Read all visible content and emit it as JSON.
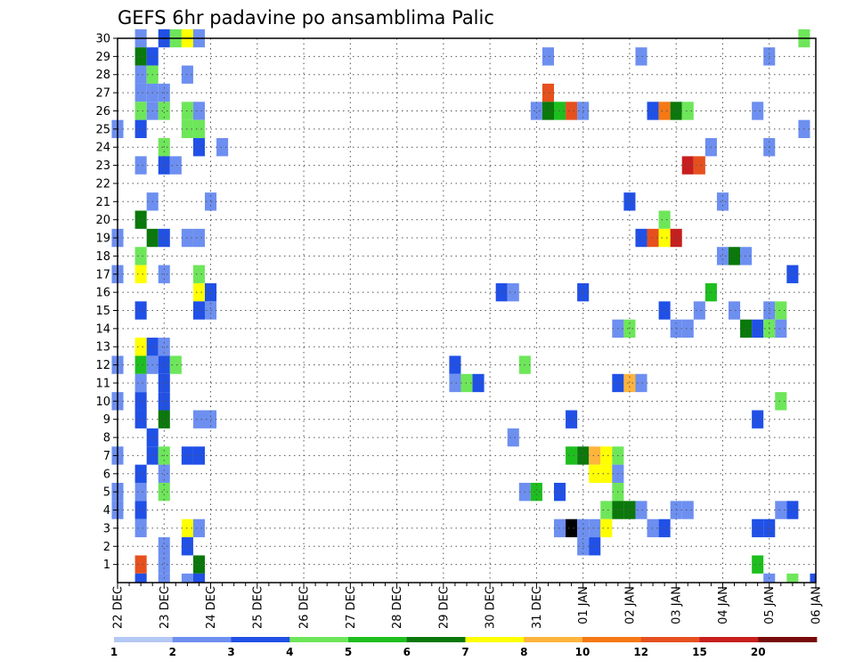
{
  "chart_data": {
    "type": "heatmap",
    "title": "GEFS 6hr padavine po ansamblima Palic",
    "xlabel": "",
    "ylabel": "",
    "x_tick_labels": [
      "22 DEC",
      "23 DEC",
      "24 DEC",
      "25 DEC",
      "26 DEC",
      "27 DEC",
      "28 DEC",
      "29 DEC",
      "30 DEC",
      "31 DEC",
      "01 JAN",
      "02 JAN",
      "03 JAN",
      "04 JAN",
      "05 JAN",
      "06 JAN"
    ],
    "y_tick_labels": [
      "1",
      "2",
      "3",
      "4",
      "5",
      "6",
      "7",
      "8",
      "9",
      "10",
      "11",
      "12",
      "13",
      "14",
      "15",
      "16",
      "17",
      "18",
      "19",
      "20",
      "21",
      "22",
      "23",
      "24",
      "25",
      "26",
      "27",
      "28",
      "29",
      "30"
    ],
    "x_unit": "6-hour step (0 = 22 DEC 00z, 4 steps per day)",
    "x_range": [
      0,
      60
    ],
    "y_range": [
      0,
      30
    ],
    "grid": true,
    "colorbar": {
      "levels": [
        "1",
        "2",
        "3",
        "4",
        "5",
        "6",
        "7",
        "8",
        "10",
        "12",
        "15",
        "20"
      ],
      "colors": [
        "#b4c8f5",
        "#6d8ff0",
        "#2050e6",
        "#6ee65a",
        "#1ebe1e",
        "#0a780a",
        "#ffff00",
        "#ffb43c",
        "#f57814",
        "#e6501e",
        "#c81e1e",
        "#780a0a"
      ]
    },
    "cells": [
      [
        2,
        30,
        1
      ],
      [
        4,
        30,
        2
      ],
      [
        5,
        30,
        3
      ],
      [
        6,
        30,
        6
      ],
      [
        7,
        30,
        1
      ],
      [
        59,
        30,
        3
      ],
      [
        2,
        29,
        5
      ],
      [
        3,
        29,
        2
      ],
      [
        37,
        29,
        1
      ],
      [
        45,
        29,
        1
      ],
      [
        56,
        29,
        1
      ],
      [
        2,
        28,
        1
      ],
      [
        3,
        28,
        3
      ],
      [
        6,
        28,
        1
      ],
      [
        2,
        27,
        1
      ],
      [
        3,
        27,
        1
      ],
      [
        4,
        27,
        1
      ],
      [
        37,
        27,
        9
      ],
      [
        2,
        26,
        3
      ],
      [
        3,
        26,
        1
      ],
      [
        4,
        26,
        3
      ],
      [
        6,
        26,
        3
      ],
      [
        7,
        26,
        1
      ],
      [
        36,
        26,
        1
      ],
      [
        37,
        26,
        5
      ],
      [
        38,
        26,
        4
      ],
      [
        39,
        26,
        9
      ],
      [
        40,
        26,
        1
      ],
      [
        46,
        26,
        2
      ],
      [
        47,
        26,
        8
      ],
      [
        48,
        26,
        5
      ],
      [
        49,
        26,
        3
      ],
      [
        55,
        26,
        1
      ],
      [
        0,
        25,
        1
      ],
      [
        2,
        25,
        2
      ],
      [
        6,
        25,
        3
      ],
      [
        7,
        25,
        3
      ],
      [
        59,
        25,
        1
      ],
      [
        4,
        24,
        3
      ],
      [
        7,
        24,
        2
      ],
      [
        9,
        24,
        1
      ],
      [
        51,
        24,
        1
      ],
      [
        56,
        24,
        1
      ],
      [
        2,
        23,
        1
      ],
      [
        4,
        23,
        2
      ],
      [
        5,
        23,
        1
      ],
      [
        49,
        23,
        10
      ],
      [
        50,
        23,
        9
      ],
      [
        3,
        21,
        1
      ],
      [
        8,
        21,
        1
      ],
      [
        44,
        21,
        2
      ],
      [
        52,
        21,
        1
      ],
      [
        2,
        20,
        5
      ],
      [
        47,
        20,
        3
      ],
      [
        0,
        19,
        1
      ],
      [
        3,
        19,
        5
      ],
      [
        4,
        19,
        2
      ],
      [
        6,
        19,
        1
      ],
      [
        7,
        19,
        1
      ],
      [
        45,
        19,
        2
      ],
      [
        46,
        19,
        9
      ],
      [
        47,
        19,
        6
      ],
      [
        48,
        19,
        10
      ],
      [
        2,
        18,
        3
      ],
      [
        52,
        18,
        1
      ],
      [
        53,
        18,
        5
      ],
      [
        54,
        18,
        1
      ],
      [
        0,
        17,
        1
      ],
      [
        2,
        17,
        6
      ],
      [
        4,
        17,
        1
      ],
      [
        7,
        17,
        3
      ],
      [
        58,
        17,
        2
      ],
      [
        7,
        16,
        6
      ],
      [
        8,
        16,
        2
      ],
      [
        33,
        16,
        2
      ],
      [
        34,
        16,
        1
      ],
      [
        40,
        16,
        2
      ],
      [
        51,
        16,
        4
      ],
      [
        2,
        15,
        2
      ],
      [
        7,
        15,
        2
      ],
      [
        8,
        15,
        1
      ],
      [
        47,
        15,
        2
      ],
      [
        50,
        15,
        1
      ],
      [
        53,
        15,
        1
      ],
      [
        56,
        15,
        1
      ],
      [
        57,
        15,
        3
      ],
      [
        43,
        14,
        1
      ],
      [
        44,
        14,
        3
      ],
      [
        48,
        14,
        1
      ],
      [
        49,
        14,
        1
      ],
      [
        54,
        14,
        5
      ],
      [
        55,
        14,
        2
      ],
      [
        56,
        14,
        3
      ],
      [
        57,
        14,
        1
      ],
      [
        2,
        13,
        6
      ],
      [
        3,
        13,
        2
      ],
      [
        4,
        13,
        1
      ],
      [
        0,
        12,
        1
      ],
      [
        2,
        12,
        4
      ],
      [
        3,
        12,
        1
      ],
      [
        4,
        12,
        2
      ],
      [
        5,
        12,
        3
      ],
      [
        29,
        12,
        2
      ],
      [
        35,
        12,
        3
      ],
      [
        2,
        11,
        1
      ],
      [
        4,
        11,
        2
      ],
      [
        29,
        11,
        1
      ],
      [
        30,
        11,
        3
      ],
      [
        31,
        11,
        2
      ],
      [
        43,
        11,
        2
      ],
      [
        44,
        11,
        7
      ],
      [
        45,
        11,
        1
      ],
      [
        0,
        10,
        1
      ],
      [
        2,
        10,
        2
      ],
      [
        4,
        10,
        2
      ],
      [
        57,
        10,
        3
      ],
      [
        2,
        9,
        2
      ],
      [
        4,
        9,
        5
      ],
      [
        7,
        9,
        1
      ],
      [
        8,
        9,
        1
      ],
      [
        39,
        9,
        2
      ],
      [
        55,
        9,
        2
      ],
      [
        3,
        8,
        2
      ],
      [
        34,
        8,
        1
      ],
      [
        0,
        7,
        1
      ],
      [
        3,
        7,
        2
      ],
      [
        4,
        7,
        3
      ],
      [
        6,
        7,
        2
      ],
      [
        7,
        7,
        2
      ],
      [
        39,
        7,
        4
      ],
      [
        40,
        7,
        5
      ],
      [
        41,
        7,
        7
      ],
      [
        42,
        7,
        6
      ],
      [
        43,
        7,
        3
      ],
      [
        2,
        6,
        2
      ],
      [
        4,
        6,
        1
      ],
      [
        41,
        6,
        6
      ],
      [
        42,
        6,
        6
      ],
      [
        43,
        6,
        1
      ],
      [
        0,
        5,
        1
      ],
      [
        2,
        5,
        1
      ],
      [
        4,
        5,
        3
      ],
      [
        35,
        5,
        1
      ],
      [
        36,
        5,
        4
      ],
      [
        38,
        5,
        2
      ],
      [
        43,
        5,
        3
      ],
      [
        0,
        4,
        1
      ],
      [
        2,
        4,
        2
      ],
      [
        42,
        4,
        3
      ],
      [
        43,
        4,
        5
      ],
      [
        44,
        4,
        5
      ],
      [
        45,
        4,
        1
      ],
      [
        48,
        4,
        1
      ],
      [
        49,
        4,
        1
      ],
      [
        57,
        4,
        1
      ],
      [
        58,
        4,
        2
      ],
      [
        2,
        3,
        1
      ],
      [
        6,
        3,
        6
      ],
      [
        7,
        3,
        1
      ],
      [
        38,
        3,
        1
      ],
      [
        39,
        3,
        12
      ],
      [
        40,
        3,
        1
      ],
      [
        41,
        3,
        1
      ],
      [
        42,
        3,
        6
      ],
      [
        46,
        3,
        1
      ],
      [
        47,
        3,
        2
      ],
      [
        55,
        3,
        2
      ],
      [
        56,
        3,
        2
      ],
      [
        4,
        2,
        1
      ],
      [
        6,
        2,
        2
      ],
      [
        40,
        2,
        1
      ],
      [
        41,
        2,
        2
      ],
      [
        2,
        1,
        9
      ],
      [
        4,
        1,
        1
      ],
      [
        7,
        1,
        5
      ],
      [
        55,
        1,
        4
      ],
      [
        2,
        0,
        2
      ],
      [
        4,
        0,
        1
      ],
      [
        6,
        0,
        1
      ],
      [
        7,
        0,
        2
      ],
      [
        56,
        0,
        1
      ],
      [
        58,
        0,
        3
      ],
      [
        60,
        0,
        2
      ]
    ]
  }
}
